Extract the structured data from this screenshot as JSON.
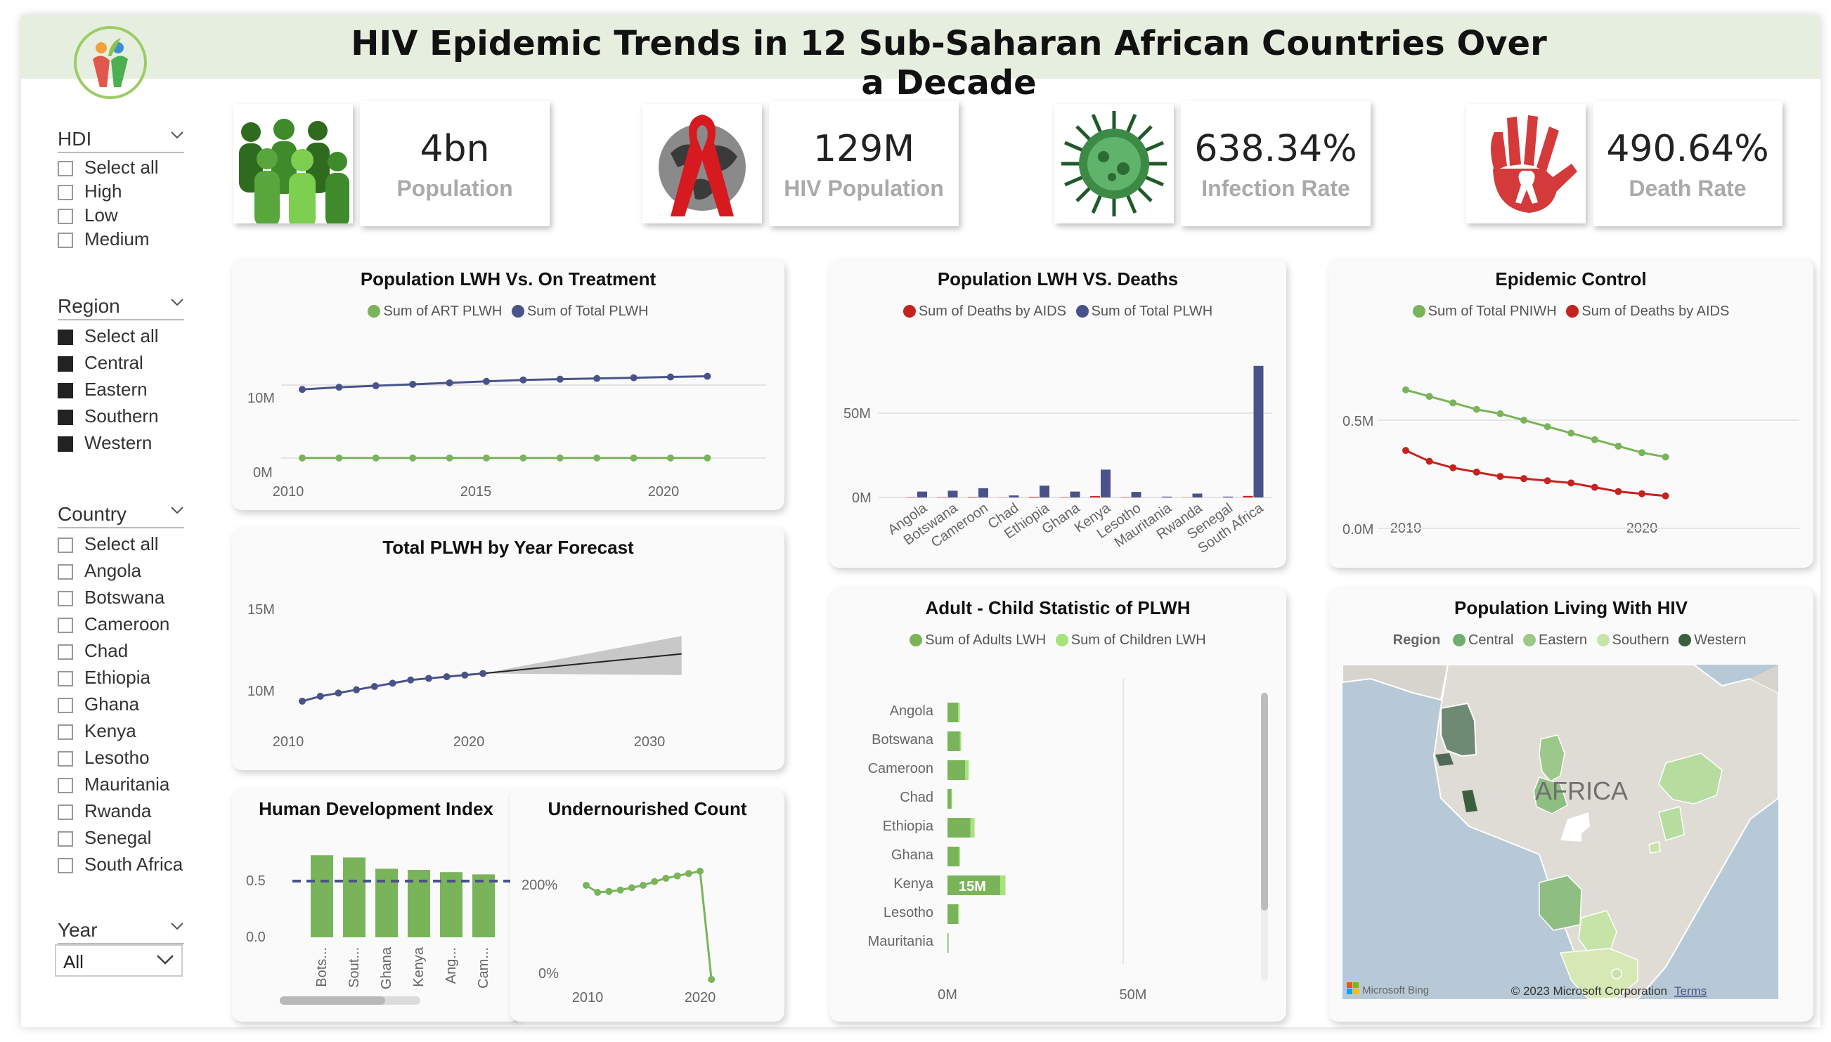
{
  "title": "HIV Epidemic Trends in 12 Sub-Saharan African Countries Over a Decade",
  "colors": {
    "green": "#7ab45a",
    "navy": "#4a5389",
    "red": "#c5221f",
    "light_green": "#a6e37a",
    "dark_green": "#3a5f3f"
  },
  "slicers": {
    "hdi": {
      "title": "HDI",
      "options": [
        "Select all",
        "High",
        "Low",
        "Medium"
      ]
    },
    "region": {
      "title": "Region",
      "options": [
        "Select all",
        "Central",
        "Eastern",
        "Southern",
        "Western"
      ]
    },
    "country": {
      "title": "Country",
      "options": [
        "Select all",
        "Angola",
        "Botswana",
        "Cameroon",
        "Chad",
        "Ethiopia",
        "Ghana",
        "Kenya",
        "Lesotho",
        "Mauritania",
        "Rwanda",
        "Senegal",
        "South Africa"
      ]
    },
    "year": {
      "title": "Year",
      "value": "All"
    }
  },
  "kpis": [
    {
      "value": "4bn",
      "label": "Population",
      "icon": "people-icon"
    },
    {
      "value": "129M",
      "label": "HIV Population",
      "icon": "ribbon-globe-icon"
    },
    {
      "value": "638.34%",
      "label": "Infection Rate",
      "icon": "virus-icon"
    },
    {
      "value": "490.64%",
      "label": "Death Rate",
      "icon": "hand-ribbon-icon"
    }
  ],
  "charts": {
    "lwh_treatment": {
      "title": "Population LWH Vs. On Treatment",
      "legend": [
        "Sum of ART PLWH",
        "Sum of Total PLWH"
      ],
      "y_ticks": [
        "10M",
        "0M"
      ],
      "x_ticks": [
        "2010",
        "2015",
        "2020"
      ]
    },
    "forecast": {
      "title": "Total PLWH by Year Forecast",
      "y_ticks": [
        "15M",
        "10M"
      ],
      "x_ticks": [
        "2010",
        "2020",
        "2030"
      ]
    },
    "hdi": {
      "title": "Human Development Index",
      "y_ticks": [
        "0.5",
        "0.0"
      ],
      "categories": [
        "Bots...",
        "Sout...",
        "Ghana",
        "Kenya",
        "Ang...",
        "Cam..."
      ]
    },
    "undernourished": {
      "title": "Undernourished Count",
      "y_ticks": [
        "200%",
        "0%"
      ],
      "x_ticks": [
        "2010",
        "2020"
      ]
    },
    "lwh_deaths": {
      "title": "Population LWH VS. Deaths",
      "legend": [
        "Sum of Deaths by AIDS",
        "Sum of Total PLWH"
      ],
      "y_ticks": [
        "50M",
        "0M"
      ],
      "categories": [
        "Angola",
        "Botswana",
        "Cameroon",
        "Chad",
        "Ethiopia",
        "Ghana",
        "Kenya",
        "Lesotho",
        "Mauritania",
        "Rwanda",
        "Senegal",
        "South Africa"
      ]
    },
    "adult_child": {
      "title": "Adult - Child Statistic of PLWH",
      "legend": [
        "Sum of Adults LWH",
        "Sum of Children LWH"
      ],
      "categories": [
        "Angola",
        "Botswana",
        "Cameroon",
        "Chad",
        "Ethiopia",
        "Ghana",
        "Kenya",
        "Lesotho",
        "Mauritania"
      ],
      "x_ticks": [
        "0M",
        "50M"
      ],
      "data_label": "15M"
    },
    "epidemic": {
      "title": "Epidemic Control",
      "legend": [
        "Sum of Total PNIWH",
        "Sum of Deaths by AIDS"
      ],
      "y_ticks": [
        "0.5M",
        "0.0M"
      ],
      "x_ticks": [
        "2010",
        "2020"
      ]
    },
    "map": {
      "title": "Population Living With HIV",
      "legend_title": "Region",
      "legend": [
        "Central",
        "Eastern",
        "Southern",
        "Western"
      ],
      "map_label": "AFRICA",
      "brand": "Microsoft Bing",
      "copyright": "© 2023 Microsoft Corporation",
      "terms": "Terms"
    }
  },
  "chart_data": [
    {
      "type": "line",
      "title": "Population LWH Vs. On Treatment",
      "x": [
        2010,
        2011,
        2012,
        2013,
        2014,
        2015,
        2016,
        2017,
        2018,
        2019,
        2020,
        2021
      ],
      "series": [
        {
          "name": "Sum of ART PLWH",
          "values": [
            0.02,
            0.02,
            0.02,
            0.02,
            0.02,
            0.02,
            0.02,
            0.02,
            0.02,
            0.02,
            0.02,
            0.02
          ]
        },
        {
          "name": "Sum of Total PLWH",
          "values": [
            9.4,
            9.7,
            9.9,
            10.1,
            10.3,
            10.5,
            10.7,
            10.8,
            10.9,
            11.0,
            11.1,
            11.2
          ]
        }
      ],
      "ylim": [
        0,
        13
      ]
    },
    {
      "type": "line",
      "title": "Total PLWH by Year Forecast",
      "x": [
        2010,
        2011,
        2012,
        2013,
        2014,
        2015,
        2016,
        2017,
        2018,
        2019,
        2020
      ],
      "values": [
        9.4,
        9.7,
        9.9,
        10.1,
        10.3,
        10.5,
        10.7,
        10.8,
        10.9,
        11.0,
        11.1
      ],
      "forecast": {
        "x": [
          2020,
          2031
        ],
        "values": [
          11.1,
          12.3
        ],
        "upper": [
          11.1,
          13.4
        ],
        "lower": [
          11.1,
          11.0
        ]
      },
      "ylim": [
        8,
        16
      ]
    },
    {
      "type": "bar",
      "title": "Human Development Index",
      "categories": [
        "Bots...",
        "Sout...",
        "Ghana",
        "Kenya",
        "Ang...",
        "Cam..."
      ],
      "values": [
        0.73,
        0.71,
        0.61,
        0.6,
        0.58,
        0.56
      ],
      "reference_line": 0.5,
      "ylim": [
        0,
        0.8
      ]
    },
    {
      "type": "line",
      "title": "Undernourished Count",
      "x": [
        2010,
        2011,
        2012,
        2013,
        2014,
        2015,
        2016,
        2017,
        2018,
        2019,
        2020,
        2021
      ],
      "values": [
        200,
        185,
        187,
        190,
        195,
        200,
        208,
        215,
        220,
        225,
        230,
        0
      ],
      "ylim": [
        0,
        300
      ]
    },
    {
      "type": "bar",
      "title": "Population LWH VS. Deaths",
      "categories": [
        "Angola",
        "Botswana",
        "Cameroon",
        "Chad",
        "Ethiopia",
        "Ghana",
        "Kenya",
        "Lesotho",
        "Mauritania",
        "Rwanda",
        "Senegal",
        "South Africa"
      ],
      "series": [
        {
          "name": "Sum of Deaths by AIDS",
          "values": [
            0.2,
            0.2,
            0.3,
            0.1,
            0.4,
            0.2,
            0.8,
            0.2,
            0.0,
            0.1,
            0.0,
            0.9
          ]
        },
        {
          "name": "Sum of Total PLWH",
          "values": [
            3.5,
            4.0,
            5.5,
            1.2,
            7.0,
            3.5,
            16.5,
            3.3,
            0.5,
            2.3,
            0.5,
            78.0
          ]
        }
      ],
      "ylim": [
        0,
        80
      ]
    },
    {
      "type": "bar",
      "title": "Adult - Child Statistic of PLWH",
      "orientation": "horizontal",
      "categories": [
        "Angola",
        "Botswana",
        "Cameroon",
        "Chad",
        "Ethiopia",
        "Ghana",
        "Kenya",
        "Lesotho",
        "Mauritania"
      ],
      "series": [
        {
          "name": "Sum of Adults LWH",
          "values": [
            3.0,
            3.5,
            5.0,
            1.1,
            6.5,
            3.2,
            15.0,
            3.0,
            0.3
          ]
        },
        {
          "name": "Sum of Children LWH",
          "values": [
            0.5,
            0.4,
            1.0,
            0.2,
            1.2,
            0.4,
            1.5,
            0.3,
            0.0
          ]
        }
      ],
      "xlim": [
        0,
        100
      ]
    },
    {
      "type": "line",
      "title": "Epidemic Control",
      "x": [
        2010,
        2011,
        2012,
        2013,
        2014,
        2015,
        2016,
        2017,
        2018,
        2019,
        2020,
        2021
      ],
      "series": [
        {
          "name": "Sum of Total PNIWH",
          "values": [
            0.64,
            0.61,
            0.58,
            0.55,
            0.53,
            0.5,
            0.47,
            0.44,
            0.41,
            0.38,
            0.35,
            0.33
          ]
        },
        {
          "name": "Sum of Deaths by AIDS",
          "values": [
            0.36,
            0.31,
            0.28,
            0.26,
            0.24,
            0.23,
            0.22,
            0.21,
            0.19,
            0.17,
            0.16,
            0.15
          ]
        }
      ],
      "ylim": [
        0,
        0.75
      ]
    }
  ]
}
